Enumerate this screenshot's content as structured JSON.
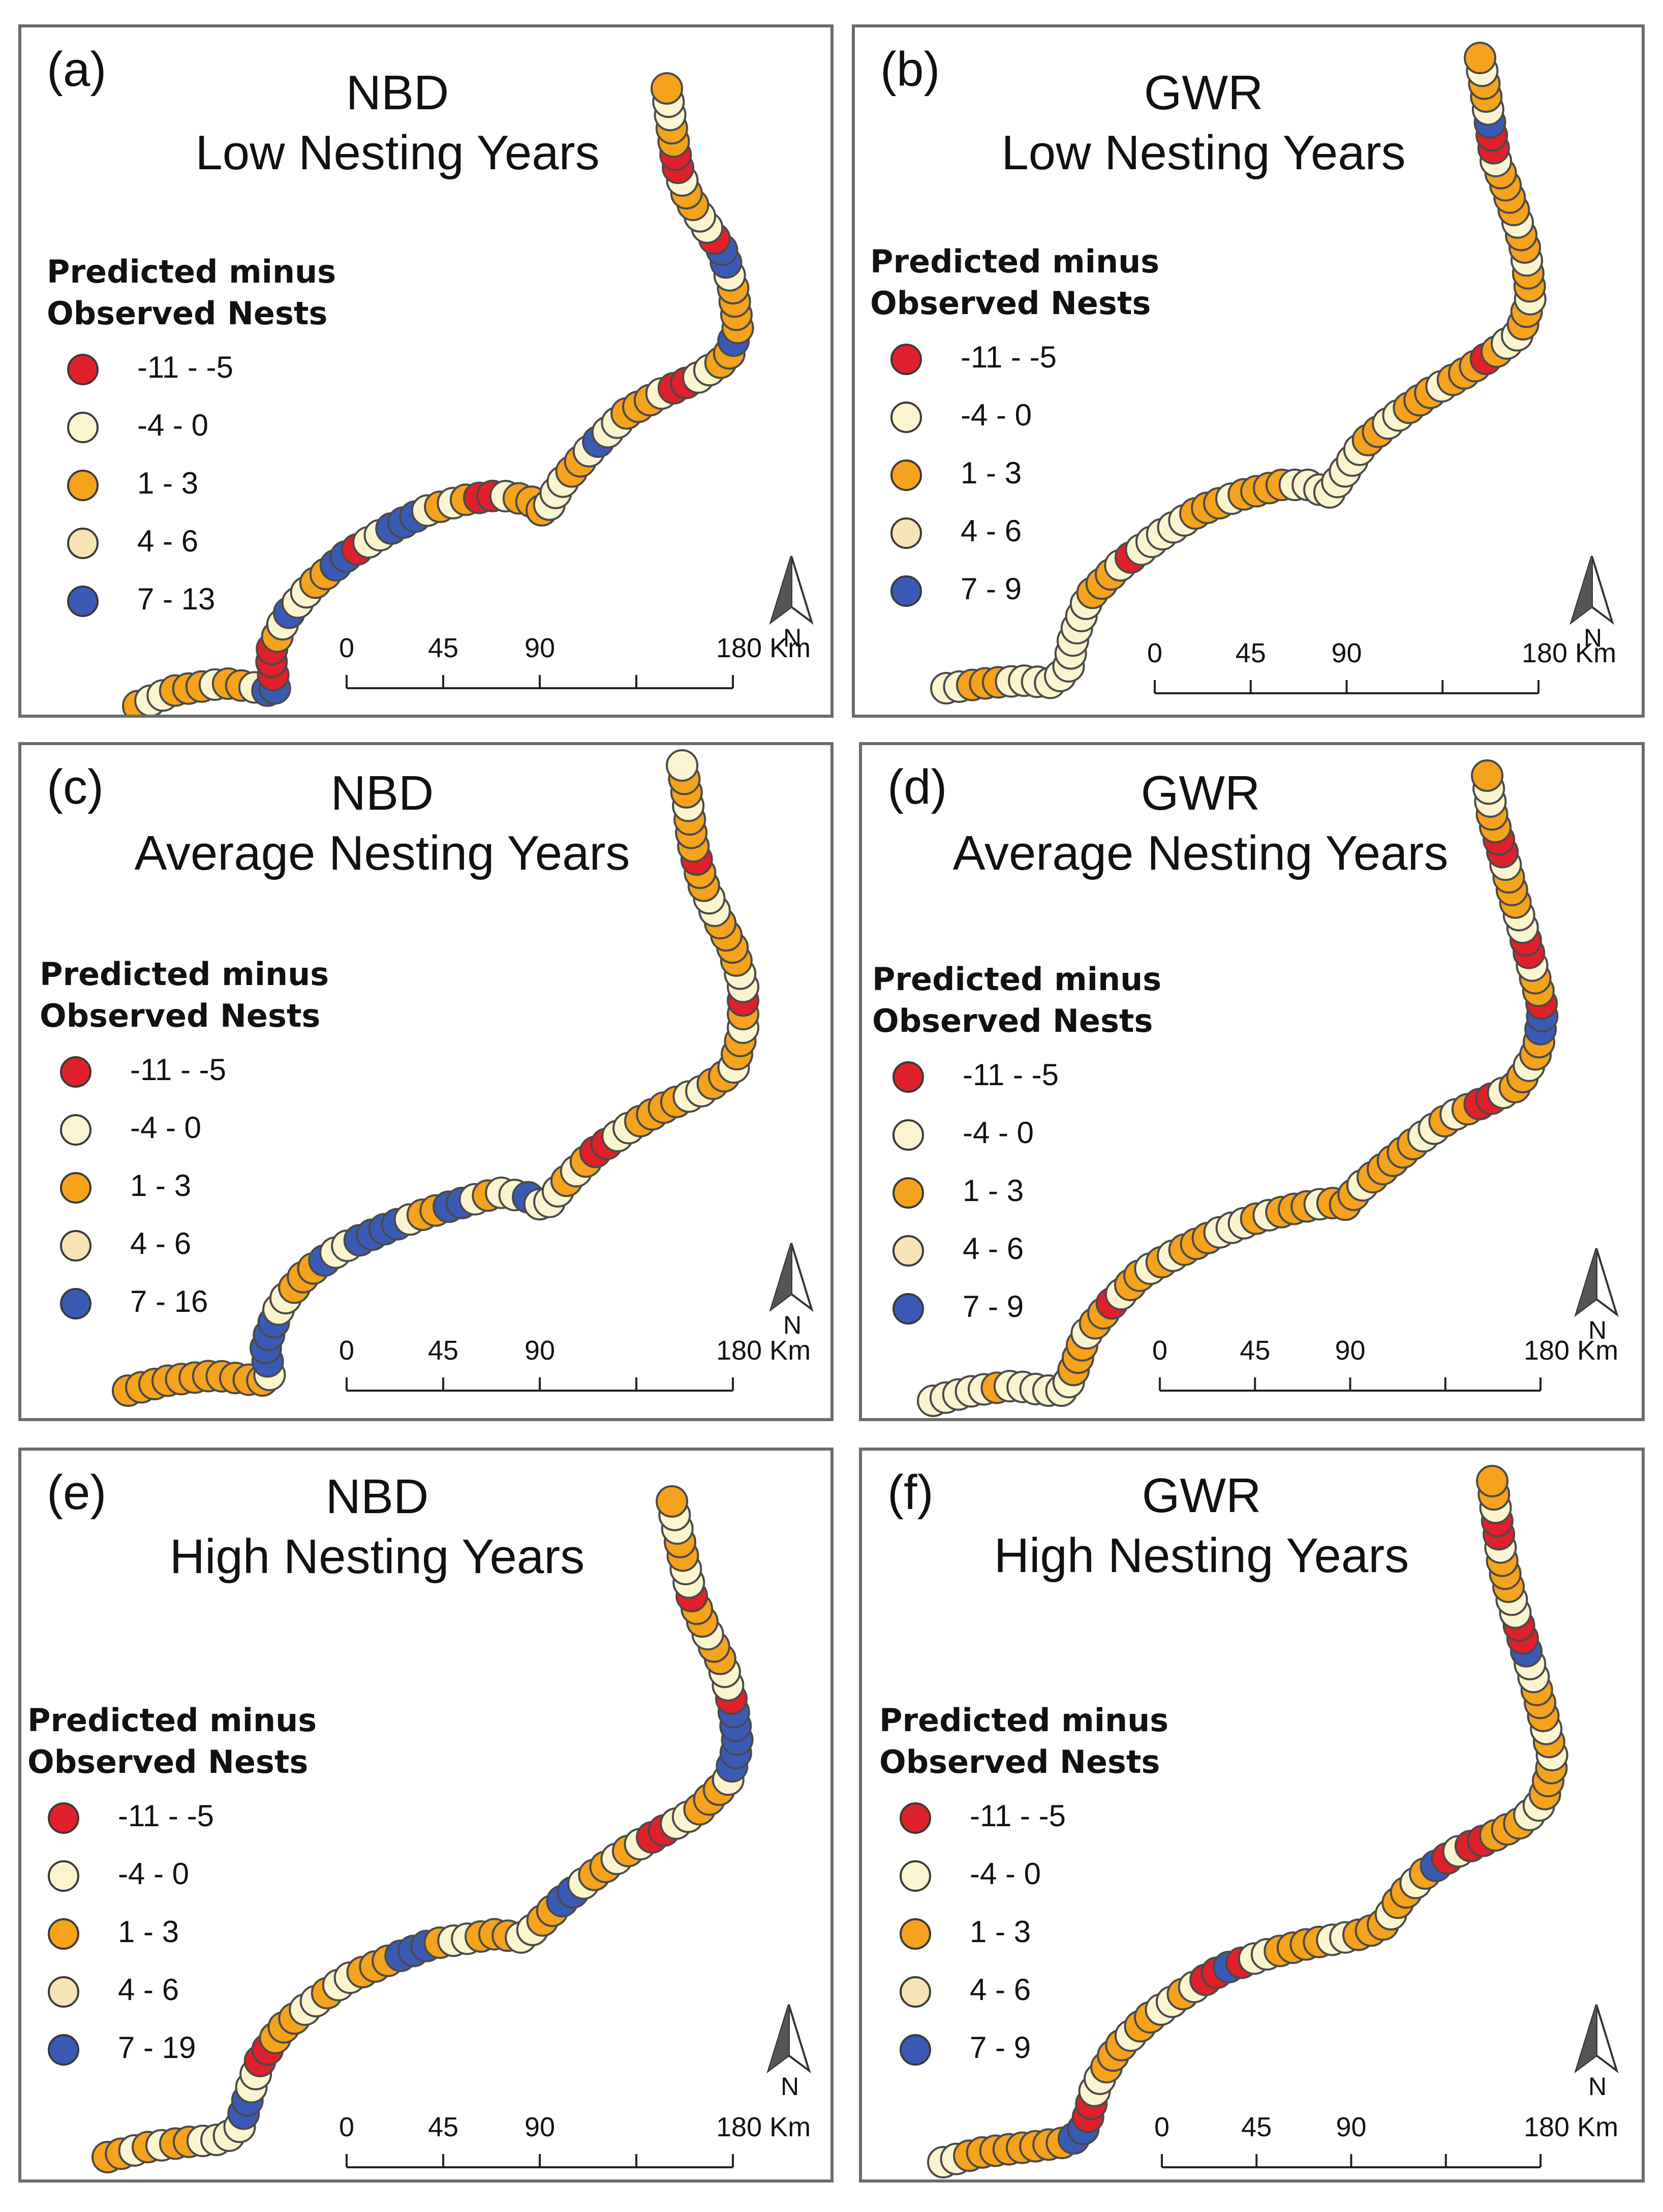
{
  "colors": {
    "red": "#e0202a",
    "pale": "#fbf5cf",
    "orange": "#f5a31c",
    "beige": "#f7e3b4",
    "blue": "#3a5bb5",
    "stroke": "#4a4a4a"
  },
  "legend_title_line1": "Predicted minus",
  "legend_title_line2": "Observed Nests",
  "north_label": "N",
  "scale_labels": [
    "0",
    "45",
    "90",
    "180 Km"
  ],
  "panels": [
    {
      "letter": "(a)",
      "model": "NBD",
      "subtitle": "Low Nesting Years",
      "legend": [
        "-11 - -5",
        "-4 - 0",
        "1 - 3",
        "4 - 6",
        "7 - 13"
      ]
    },
    {
      "letter": "(b)",
      "model": "GWR",
      "subtitle": "Low Nesting Years",
      "legend": [
        "-11 - -5",
        "-4 - 0",
        "1 - 3",
        "4 - 6",
        "7 - 9"
      ]
    },
    {
      "letter": "(c)",
      "model": "NBD",
      "subtitle": "Average Nesting Years",
      "legend": [
        "-11 - -5",
        "-4 - 0",
        "1 - 3",
        "4 - 6",
        "7 - 16"
      ]
    },
    {
      "letter": "(d)",
      "model": "GWR",
      "subtitle": "Average Nesting Years",
      "legend": [
        "-11 - -5",
        "-4 - 0",
        "1 - 3",
        "4 - 6",
        "7 - 9"
      ]
    },
    {
      "letter": "(e)",
      "model": "NBD",
      "subtitle": "High Nesting Years",
      "legend": [
        "-11 - -5",
        "-4 - 0",
        "1 - 3",
        "4 - 6",
        "7 - 19"
      ]
    },
    {
      "letter": "(f)",
      "model": "GWR",
      "subtitle": "High Nesting Years",
      "legend": [
        "-11 - -5",
        "-4 - 0",
        "1 - 3",
        "4 - 6",
        "7 - 9"
      ]
    }
  ],
  "class_sequences": [
    "OPPOOOPOOPBBRRROPBPPOOBBRPPBBBPOPORRPOOOPPPOOPBPPOOOPRRPPOOBOOOOPBBRPPOOPRROOPPO",
    "PPOOOPPPPPPPPPPPOOOPRPPPPPOOOPOOOOPPPPPPPPOOPPOOOPOOOROPPOOPOOPOOPOOOOPRRBPOOPO",
    "OOOOOOOOOOOPBBBBPPOOOBPPBBBBPOOBBPOPPBPPPOPORRPPOOOOPPOOPOOPORPPOOOOPPOOROOOPOOP",
    "PPPPPOPPPPPPOOOPOORPOOPOPOOOPPPOPOOOPOOOPOOOOOPPOPORRPOOPOOBBROOPRRPPOOOPRROOPPO",
    "OOPOPOOPPPPBBPPRROOOPPOPPOOOBBBOPPOOOPPOOBBPOOPOPRRPPOOOPBBBBBRPPOOPOORPPOOPPO",
    "PPOOOOOOOOBBRRPPOOOPOOPPOPRRBRPPOOOOPPOOOPOOPOBRPRROOOPPOOOPOPOOOPPBRRPPOOOPRRPOO"
  ]
}
